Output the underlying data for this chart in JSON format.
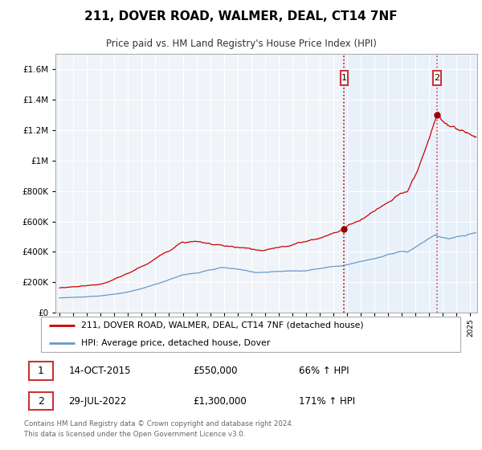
{
  "title": "211, DOVER ROAD, WALMER, DEAL, CT14 7NF",
  "subtitle": "Price paid vs. HM Land Registry's House Price Index (HPI)",
  "legend_line1": "211, DOVER ROAD, WALMER, DEAL, CT14 7NF (detached house)",
  "legend_line2": "HPI: Average price, detached house, Dover",
  "footnote": "Contains HM Land Registry data © Crown copyright and database right 2024.\nThis data is licensed under the Open Government Licence v3.0.",
  "sale1_label": "1",
  "sale1_date": "14-OCT-2015",
  "sale1_price": "£550,000",
  "sale1_hpi": "66% ↑ HPI",
  "sale2_label": "2",
  "sale2_date": "29-JUL-2022",
  "sale2_price": "£1,300,000",
  "sale2_hpi": "171% ↑ HPI",
  "vline1_year": 2015.79,
  "vline2_year": 2022.57,
  "marker1_x": 2015.79,
  "marker1_y": 550000,
  "marker2_x": 2022.57,
  "marker2_y": 1300000,
  "ylim": [
    0,
    1700000
  ],
  "xlim_start": 1994.7,
  "xlim_end": 2025.5,
  "line_color_red": "#cc0000",
  "line_color_blue": "#6699cc",
  "vline_color": "#cc0000",
  "vline2_color": "#cc6688",
  "bg_highlight_color": "#ddeeff",
  "chart_bg_color": "#f0f4f8",
  "grid_color": "#ffffff",
  "box_color": "#cc3333",
  "legend_border_color": "#aaaaaa",
  "footnote_color": "#666666"
}
